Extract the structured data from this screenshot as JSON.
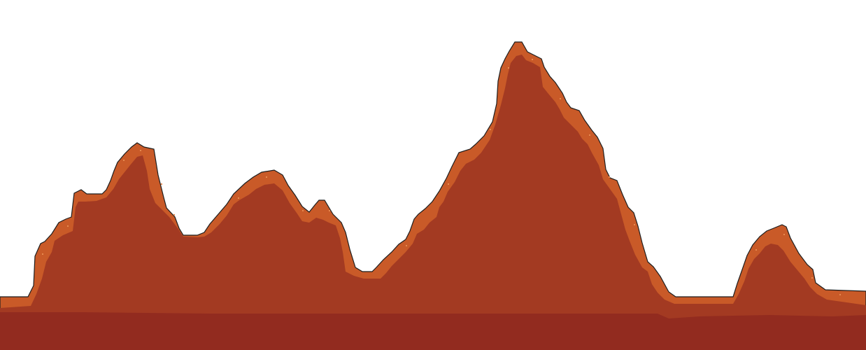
{
  "scene": {
    "background_color": "#ffffff",
    "outline_color": "#1e1e1e",
    "rim_color": "#c95a28",
    "mountain_color": "#a33a22",
    "ground_color": "#922b1f"
  }
}
